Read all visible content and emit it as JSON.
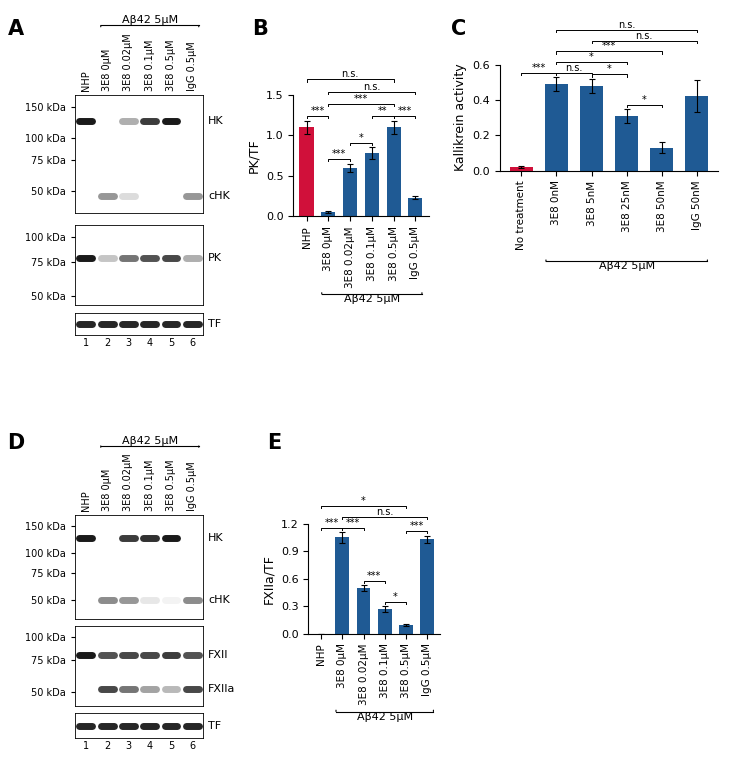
{
  "chart_data": [
    {
      "panel": "B",
      "type": "bar",
      "ylabel": "PK/TF",
      "categories": [
        "NHP",
        "3E8 0μM",
        "3E8 0.02μM",
        "3E8 0.1μM",
        "3E8 0.5μM",
        "IgG 0.5μM"
      ],
      "values": [
        1.1,
        0.05,
        0.6,
        0.78,
        1.1,
        0.23
      ],
      "errors": [
        0.08,
        0.01,
        0.05,
        0.07,
        0.08,
        0.02
      ],
      "colors": [
        "#d0103a",
        "#1f5a94",
        "#1f5a94",
        "#1f5a94",
        "#1f5a94",
        "#1f5a94"
      ],
      "ylim": [
        0,
        1.5
      ],
      "yticks": [
        {
          "value": 0,
          "label": "0.0"
        },
        {
          "value": 0.5,
          "label": "0.5"
        },
        {
          "value": 1,
          "label": "1.0"
        },
        {
          "value": 1.5,
          "label": "1.5"
        }
      ],
      "group": {
        "label": "Aβ42 5μM",
        "from": "3E8 0μM",
        "to": "IgG 0.5μM"
      },
      "significance": [
        {
          "from": "NHP",
          "to": "3E8 0μM",
          "label": "***"
        },
        {
          "from": "3E8 0μM",
          "to": "3E8 0.02μM",
          "label": "***"
        },
        {
          "from": "3E8 0.02μM",
          "to": "3E8 0.1μM",
          "label": "*"
        },
        {
          "from": "3E8 0.1μM",
          "to": "3E8 0.5μM",
          "label": "**"
        },
        {
          "from": "3E8 0.5μM",
          "to": "IgG 0.5μM",
          "label": "***"
        },
        {
          "from": "3E8 0μM",
          "to": "3E8 0.5μM",
          "label": "***"
        },
        {
          "from": "3E8 0μM",
          "to": "IgG 0.5μM",
          "label": "n.s."
        },
        {
          "from": "NHP",
          "to": "3E8 0.5μM",
          "label": "n.s."
        }
      ]
    },
    {
      "panel": "C",
      "type": "bar",
      "ylabel": "Kallikrein activity",
      "categories": [
        "No treatment",
        "3E8 0nM",
        "3E8 5nM",
        "3E8 25nM",
        "3E8 50nM",
        "IgG 50nM"
      ],
      "values": [
        0.02,
        0.49,
        0.48,
        0.31,
        0.13,
        0.42
      ],
      "errors": [
        0.005,
        0.04,
        0.04,
        0.04,
        0.03,
        0.09
      ],
      "colors": [
        "#d0103a",
        "#1f5a94",
        "#1f5a94",
        "#1f5a94",
        "#1f5a94",
        "#1f5a94"
      ],
      "ylim": [
        0,
        0.6
      ],
      "yticks": [
        {
          "value": 0,
          "label": "0.0"
        },
        {
          "value": 0.2,
          "label": "0.2"
        },
        {
          "value": 0.4,
          "label": "0.4"
        },
        {
          "value": 0.6,
          "label": "0.6"
        }
      ],
      "group": {
        "label": "Aβ42 5μM",
        "from": "3E8 0nM",
        "to": "IgG 50nM"
      },
      "significance": [
        {
          "from": "No treatment",
          "to": "3E8 0nM",
          "label": "***"
        },
        {
          "from": "3E8 0nM",
          "to": "3E8 5nM",
          "label": "n.s."
        },
        {
          "from": "3E8 5nM",
          "to": "3E8 25nM",
          "label": "*"
        },
        {
          "from": "3E8 25nM",
          "to": "3E8 50nM",
          "label": "*"
        },
        {
          "from": "3E8 0nM",
          "to": "3E8 25nM",
          "label": "*"
        },
        {
          "from": "3E8 0nM",
          "to": "3E8 50nM",
          "label": "***"
        },
        {
          "from": "3E8 5nM",
          "to": "IgG 50nM",
          "label": "n.s."
        },
        {
          "from": "3E8 0nM",
          "to": "IgG 50nM",
          "label": "n.s."
        }
      ]
    },
    {
      "panel": "E",
      "type": "bar",
      "ylabel": "FXIIa/TF",
      "categories": [
        "NHP",
        "3E8 0μM",
        "3E8 0.02μM",
        "3E8 0.1μM",
        "3E8 0.5μM",
        "IgG 0.5μM"
      ],
      "values": [
        0.0,
        1.05,
        0.5,
        0.27,
        0.1,
        1.03
      ],
      "errors": [
        0.0,
        0.06,
        0.03,
        0.03,
        0.01,
        0.04
      ],
      "colors": [
        "#d0103a",
        "#1f5a94",
        "#1f5a94",
        "#1f5a94",
        "#1f5a94",
        "#1f5a94"
      ],
      "ylim": [
        0,
        1.2
      ],
      "yticks": [
        {
          "value": 0,
          "label": "0.0"
        },
        {
          "value": 0.3,
          "label": "0.3"
        },
        {
          "value": 0.6,
          "label": "0.6"
        },
        {
          "value": 0.9,
          "label": "0.9"
        },
        {
          "value": 1.2,
          "label": "1.2"
        }
      ],
      "group": {
        "label": "Aβ42 5μM",
        "from": "3E8 0μM",
        "to": "IgG 0.5μM"
      },
      "significance": [
        {
          "from": "NHP",
          "to": "3E8 0μM",
          "label": "***"
        },
        {
          "from": "3E8 0μM",
          "to": "3E8 0.02μM",
          "label": "***"
        },
        {
          "from": "3E8 0.02μM",
          "to": "3E8 0.1μM",
          "label": "***"
        },
        {
          "from": "3E8 0.1μM",
          "to": "3E8 0.5μM",
          "label": "*"
        },
        {
          "from": "3E8 0.5μM",
          "to": "IgG 0.5μM",
          "label": "***"
        },
        {
          "from": "3E8 0μM",
          "to": "IgG 0.5μM",
          "label": "n.s."
        },
        {
          "from": "NHP",
          "to": "3E8 0.5μM",
          "label": "*"
        }
      ]
    }
  ],
  "blots": [
    {
      "panel": "A",
      "lanes": [
        "NHP",
        "3E8 0μM",
        "3E8 0.02μM",
        "3E8 0.1μM",
        "3E8 0.5μM",
        "IgG 0.5μM"
      ],
      "lane_numbers": [
        1,
        2,
        3,
        4,
        5,
        6
      ],
      "group": {
        "label": "Aβ42 5μM",
        "from": "3E8 0μM",
        "to": "IgG 0.5μM"
      },
      "strips": [
        {
          "ylim": [
            38,
            175
          ],
          "yticks": [
            {
              "value": 150,
              "label": "150 kDa"
            },
            {
              "value": 100,
              "label": "100 kDa"
            },
            {
              "value": 75,
              "label": "75 kDa"
            },
            {
              "value": 50,
              "label": "50 kDa"
            }
          ],
          "bands": [
            {
              "name": "HK",
              "kda": 125,
              "intensity": [
                1.0,
                0,
                0.35,
                0.85,
                1.0,
                0
              ]
            },
            {
              "name": "cHK",
              "kda": 47,
              "intensity": [
                0,
                0.45,
                0.15,
                0,
                0,
                0.45
              ]
            }
          ]
        },
        {
          "ylim": [
            45,
            115
          ],
          "yticks": [
            {
              "value": 100,
              "label": "100 kDa"
            },
            {
              "value": 75,
              "label": "75 kDa"
            },
            {
              "value": 50,
              "label": "50 kDa"
            }
          ],
          "bands": [
            {
              "name": "PK",
              "kda": 78,
              "intensity": [
                1.0,
                0.25,
                0.6,
                0.75,
                0.8,
                0.35
              ]
            }
          ]
        },
        {
          "bands": [
            {
              "name": "TF",
              "intensity": [
                0.95,
                0.95,
                0.95,
                0.95,
                0.95,
                0.95
              ]
            }
          ]
        }
      ]
    },
    {
      "panel": "D",
      "lanes": [
        "NHP",
        "3E8 0μM",
        "3E8 0.02μM",
        "3E8 0.1μM",
        "3E8 0.5μM",
        "IgG 0.5μM"
      ],
      "lane_numbers": [
        1,
        2,
        3,
        4,
        5,
        6
      ],
      "group": {
        "label": "Aβ42 5μM",
        "from": "3E8 0μM",
        "to": "IgG 0.5μM"
      },
      "strips": [
        {
          "ylim": [
            38,
            175
          ],
          "yticks": [
            {
              "value": 150,
              "label": "150 kDa"
            },
            {
              "value": 100,
              "label": "100 kDa"
            },
            {
              "value": 75,
              "label": "75 kDa"
            },
            {
              "value": 50,
              "label": "50 kDa"
            }
          ],
          "bands": [
            {
              "name": "HK",
              "kda": 125,
              "intensity": [
                1.0,
                0,
                0.85,
                0.9,
                1.0,
                0
              ]
            },
            {
              "name": "cHK",
              "kda": 50,
              "intensity": [
                0,
                0.5,
                0.45,
                0.1,
                0.05,
                0.5
              ]
            }
          ]
        },
        {
          "ylim": [
            42,
            115
          ],
          "yticks": [
            {
              "value": 100,
              "label": "100 kDa"
            },
            {
              "value": 75,
              "label": "75 kDa"
            },
            {
              "value": 50,
              "label": "50 kDa"
            }
          ],
          "bands": [
            {
              "name": "FXII",
              "kda": 80,
              "intensity": [
                1.0,
                0.75,
                0.8,
                0.8,
                0.85,
                0.75
              ]
            },
            {
              "name": "FXIIa",
              "kda": 52,
              "intensity": [
                0,
                0.8,
                0.6,
                0.4,
                0.3,
                0.8
              ]
            }
          ]
        },
        {
          "bands": [
            {
              "name": "TF",
              "intensity": [
                0.95,
                0.95,
                0.95,
                0.95,
                0.95,
                0.95
              ]
            }
          ]
        }
      ]
    }
  ]
}
